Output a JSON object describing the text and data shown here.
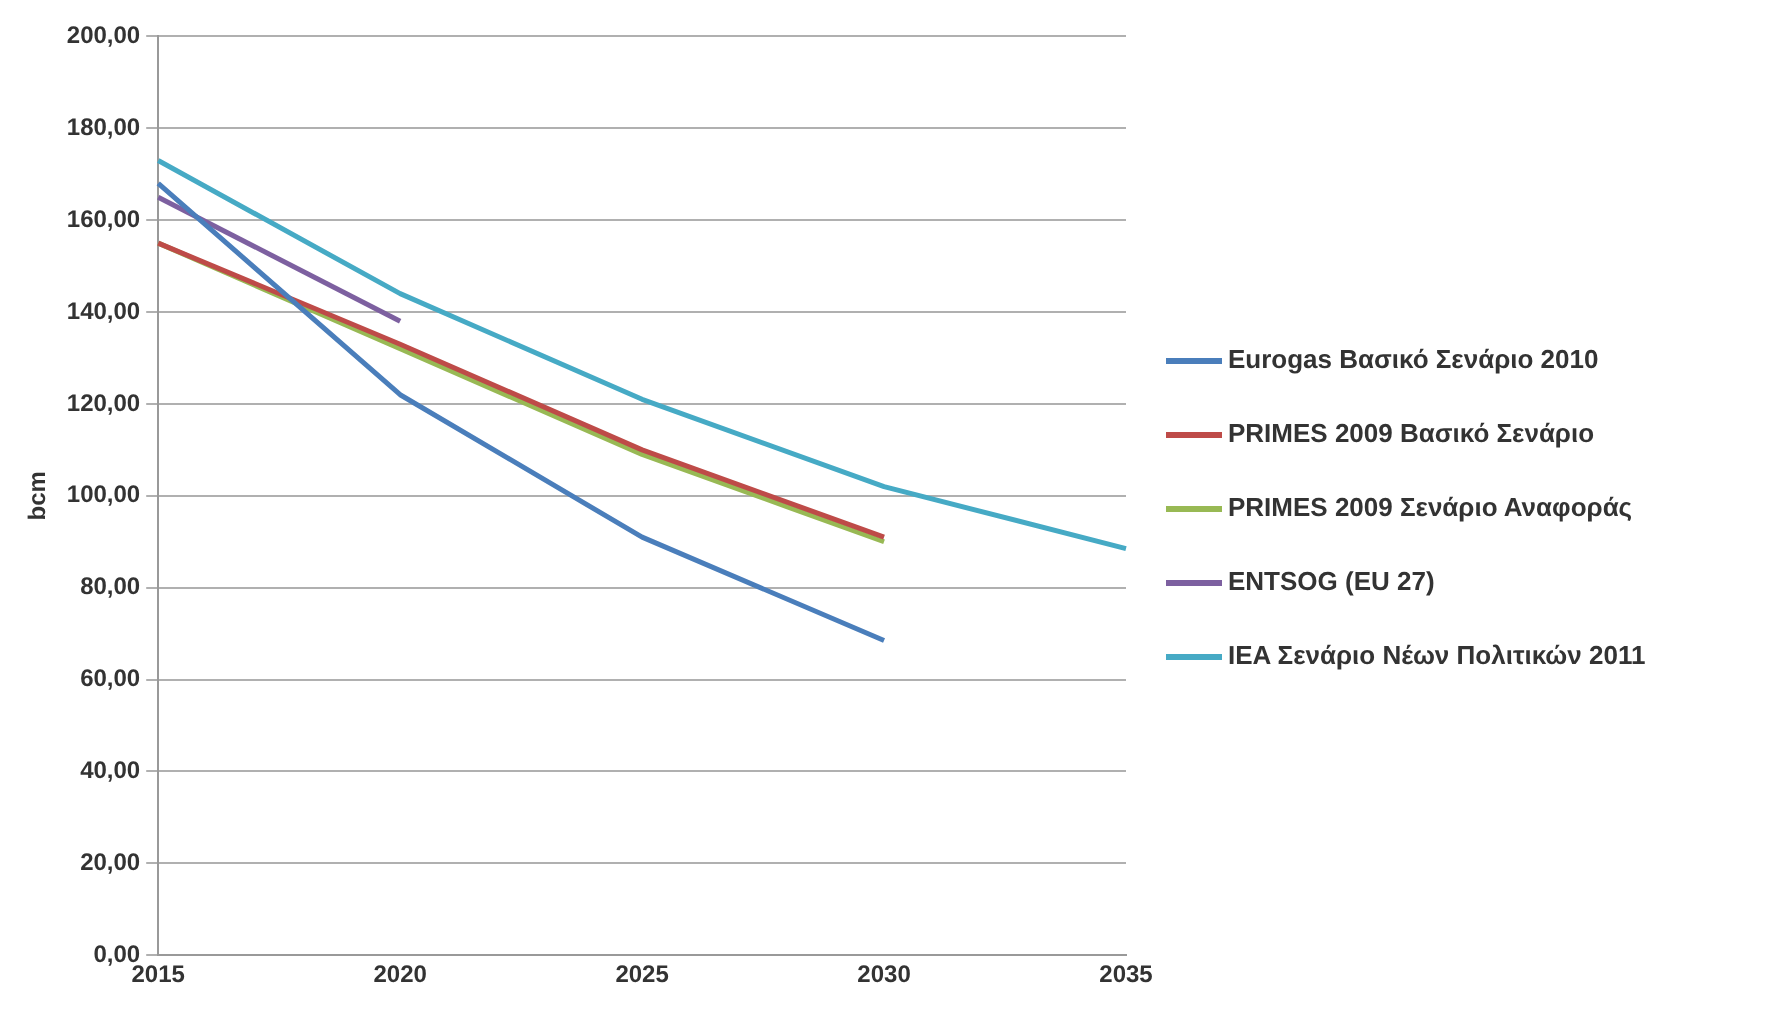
{
  "chart_data": {
    "type": "line",
    "ylabel": "bcm",
    "categories": [
      "2015",
      "2020",
      "2025",
      "2030",
      "2035"
    ],
    "series": [
      {
        "name": "Eurogas Βασικό Σενάριο 2010",
        "color": "#4a7ebb",
        "values": [
          168,
          122,
          91,
          68.5,
          null
        ]
      },
      {
        "name": "PRIMES 2009 Βασικό Σενάριο",
        "color": "#be4b48",
        "values": [
          155,
          133,
          110,
          91,
          null
        ]
      },
      {
        "name": "PRIMES 2009 Σενάριο Αναφοράς",
        "color": "#98b954",
        "values": [
          155,
          132,
          109,
          90,
          null
        ]
      },
      {
        "name": "ENTSOG (EU 27)",
        "color": "#7d60a0",
        "values": [
          165,
          138,
          null,
          null,
          null
        ]
      },
      {
        "name": "IEA Σενάριο Νέων Πολιτικών 2011",
        "color": "#46aac5",
        "values": [
          173,
          144,
          121,
          102,
          88.5
        ]
      }
    ],
    "ylim": [
      0,
      200
    ],
    "yticks": [
      {
        "value": 0,
        "label": "0,00"
      },
      {
        "value": 20,
        "label": "20,00"
      },
      {
        "value": 40,
        "label": "40,00"
      },
      {
        "value": 60,
        "label": "60,00"
      },
      {
        "value": 80,
        "label": "80,00"
      },
      {
        "value": 100,
        "label": "100,00"
      },
      {
        "value": 120,
        "label": "120,00"
      },
      {
        "value": 140,
        "label": "140,00"
      },
      {
        "value": 160,
        "label": "160,00"
      },
      {
        "value": 180,
        "label": "180,00"
      },
      {
        "value": 200,
        "label": "200,00"
      }
    ],
    "grid": "y",
    "legend": "right",
    "marker": "none",
    "line_style": "solid"
  }
}
